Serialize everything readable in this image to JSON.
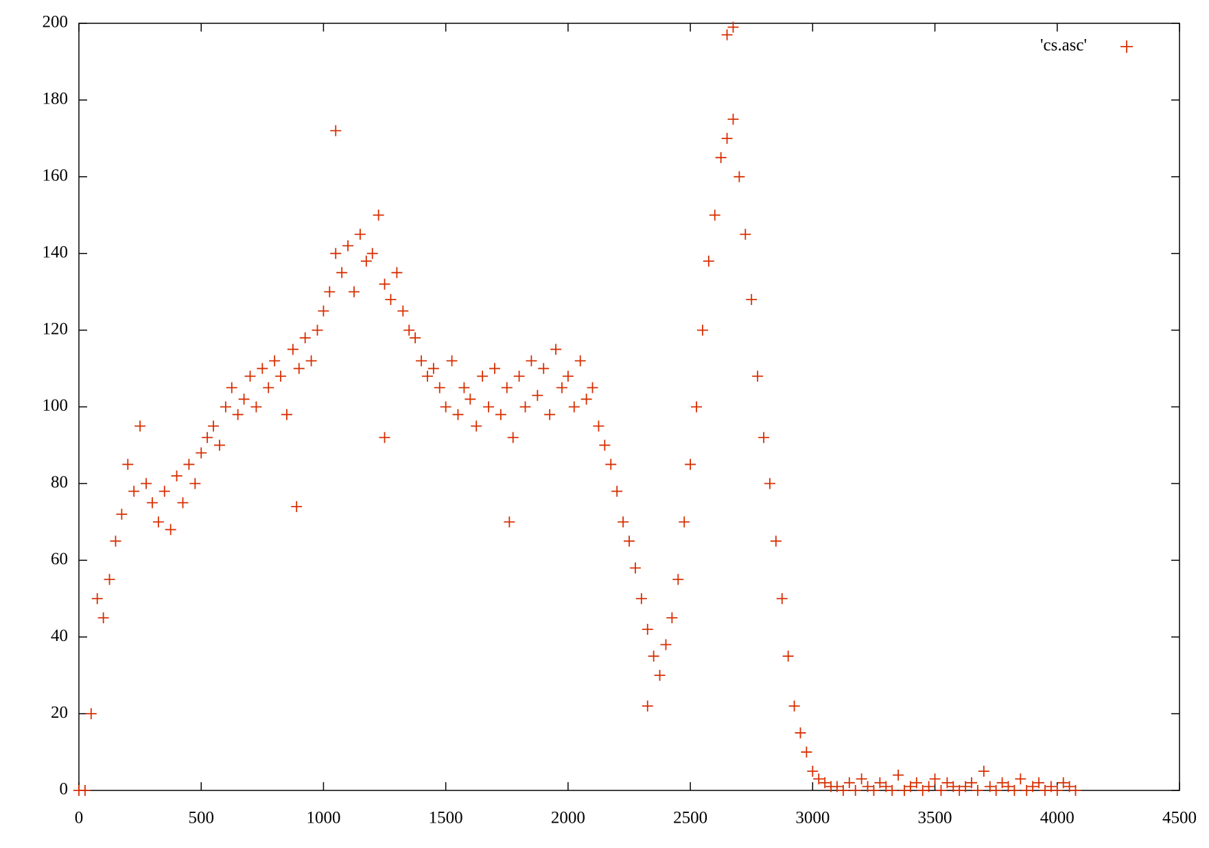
{
  "chart_data": {
    "type": "scatter",
    "series": [
      {
        "name": "'cs.asc'",
        "color": "#d62e00",
        "x": [
          0,
          25,
          50,
          75,
          100,
          125,
          150,
          175,
          200,
          225,
          250,
          275,
          300,
          325,
          350,
          375,
          400,
          425,
          450,
          475,
          500,
          525,
          550,
          575,
          600,
          625,
          650,
          675,
          700,
          725,
          750,
          775,
          800,
          825,
          850,
          875,
          900,
          925,
          950,
          975,
          1000,
          1025,
          1050,
          1075,
          1100,
          1125,
          1150,
          1175,
          1200,
          1225,
          1250,
          1275,
          1300,
          1325,
          1350,
          1375,
          1400,
          1425,
          1450,
          1475,
          1500,
          1525,
          1550,
          1575,
          1600,
          1625,
          1650,
          1675,
          1700,
          1725,
          1750,
          1775,
          1800,
          1825,
          1850,
          1875,
          1900,
          1925,
          1950,
          1975,
          2000,
          2025,
          2050,
          2075,
          2100,
          2125,
          2150,
          2175,
          2200,
          2225,
          2250,
          2275,
          2300,
          2325,
          2350,
          2375,
          2400,
          2425,
          2450,
          2475,
          2500,
          2525,
          2550,
          2575,
          2600,
          2625,
          2650,
          2675,
          2700,
          2725,
          2750,
          2775,
          2800,
          2825,
          2850,
          2875,
          2900,
          2925,
          2950,
          2975,
          3000,
          3025,
          3050,
          3075,
          3100,
          3125,
          3150,
          3175,
          3200,
          3225,
          3250,
          3275,
          3300,
          3325,
          3350,
          3375,
          3400,
          3425,
          3450,
          3475,
          3500,
          3525,
          3550,
          3575,
          3600,
          3625,
          3650,
          3675,
          3700,
          3725,
          3750,
          3775,
          3800,
          3825,
          3850,
          3875,
          3900,
          3925,
          3950,
          3975,
          4000,
          4025,
          4050,
          4075,
          1050,
          2650,
          2675,
          1250,
          1760,
          2325,
          890
        ],
        "values": [
          0,
          0,
          20,
          50,
          45,
          55,
          65,
          72,
          85,
          78,
          95,
          80,
          75,
          70,
          78,
          68,
          82,
          75,
          85,
          80,
          88,
          92,
          95,
          90,
          100,
          105,
          98,
          102,
          108,
          100,
          110,
          105,
          112,
          108,
          98,
          115,
          110,
          118,
          112,
          120,
          125,
          130,
          140,
          135,
          142,
          130,
          145,
          138,
          140,
          150,
          132,
          128,
          135,
          125,
          120,
          118,
          112,
          108,
          110,
          105,
          100,
          112,
          98,
          105,
          102,
          95,
          108,
          100,
          110,
          98,
          105,
          92,
          108,
          100,
          112,
          103,
          110,
          98,
          115,
          105,
          108,
          100,
          112,
          102,
          105,
          95,
          90,
          85,
          78,
          70,
          65,
          58,
          50,
          42,
          35,
          30,
          38,
          45,
          55,
          70,
          85,
          100,
          120,
          138,
          150,
          165,
          170,
          175,
          160,
          145,
          128,
          108,
          92,
          80,
          65,
          50,
          35,
          22,
          15,
          10,
          5,
          3,
          2,
          1,
          1,
          0,
          2,
          0,
          3,
          1,
          0,
          2,
          1,
          0,
          4,
          0,
          1,
          2,
          0,
          1,
          3,
          0,
          2,
          1,
          0,
          1,
          2,
          0,
          5,
          1,
          0,
          2,
          1,
          0,
          3,
          0,
          1,
          2,
          0,
          1,
          0,
          2,
          1,
          0,
          172,
          197,
          199,
          92,
          70,
          22,
          74
        ]
      }
    ],
    "xlim": [
      0,
      4500
    ],
    "xticks": [
      0,
      500,
      1000,
      1500,
      2000,
      2500,
      3000,
      3500,
      4000,
      4500
    ],
    "ylim": [
      0,
      200
    ],
    "yticks": [
      0,
      20,
      40,
      60,
      80,
      100,
      120,
      140,
      160,
      180,
      200
    ],
    "legend": "top-right"
  }
}
